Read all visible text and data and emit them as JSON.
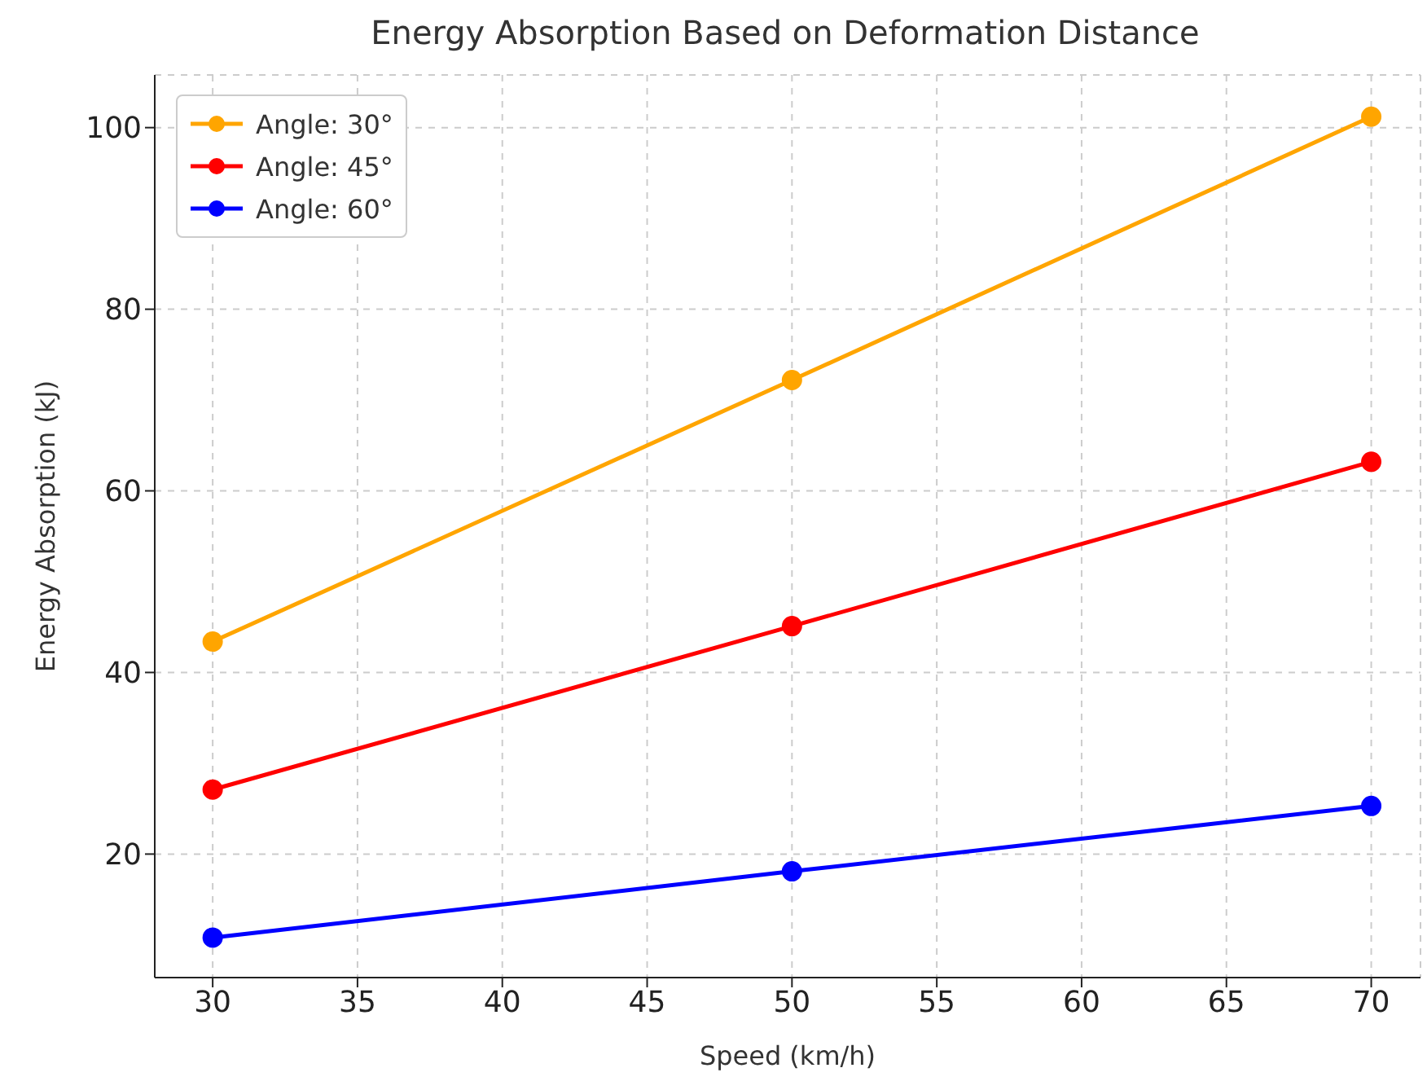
{
  "chart_data": {
    "type": "line",
    "title": "Energy Absorption Based on Deformation Distance",
    "xlabel": "Speed (km/h)",
    "ylabel": "Energy Absorption (kJ)",
    "x": [
      30,
      50,
      70
    ],
    "series": [
      {
        "name": "Angle: 30°",
        "color": "#ffa500",
        "values": [
          43.4,
          72.2,
          101.2
        ]
      },
      {
        "name": "Angle: 45°",
        "color": "#ff0000",
        "values": [
          27.1,
          45.1,
          63.2
        ]
      },
      {
        "name": "Angle: 60°",
        "color": "#0000ff",
        "values": [
          10.8,
          18.1,
          25.3
        ]
      }
    ],
    "xlim": [
      28,
      71.7
    ],
    "xticks": [
      30,
      35,
      40,
      45,
      50,
      55,
      60,
      65,
      70
    ],
    "ylim": [
      6.4,
      105.8
    ],
    "yticks": [
      20,
      40,
      60,
      80,
      100
    ],
    "grid": true,
    "legend": "top left",
    "marker": "circle",
    "line_style": "solid"
  }
}
